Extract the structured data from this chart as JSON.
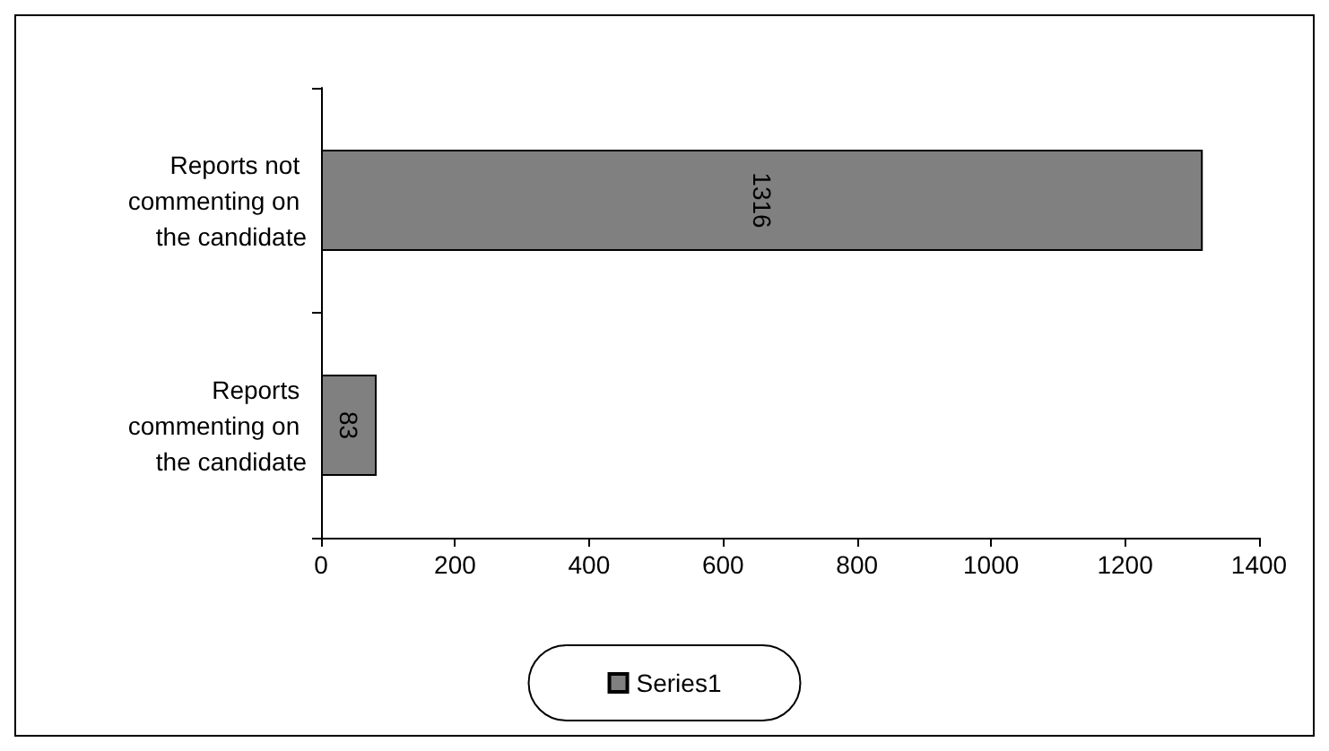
{
  "chart_data": {
    "type": "bar",
    "orientation": "horizontal",
    "categories": [
      "Reports not commenting on the candidate",
      "Reports commenting on the candidate"
    ],
    "series": [
      {
        "name": "Series1",
        "color": "#808080",
        "values": [
          1316,
          83
        ]
      }
    ],
    "xlim": [
      0,
      1400
    ],
    "xticks": [
      0,
      200,
      400,
      600,
      800,
      1000,
      1200,
      1400
    ],
    "data_labels": true,
    "legend": "bottom",
    "grid": false
  }
}
